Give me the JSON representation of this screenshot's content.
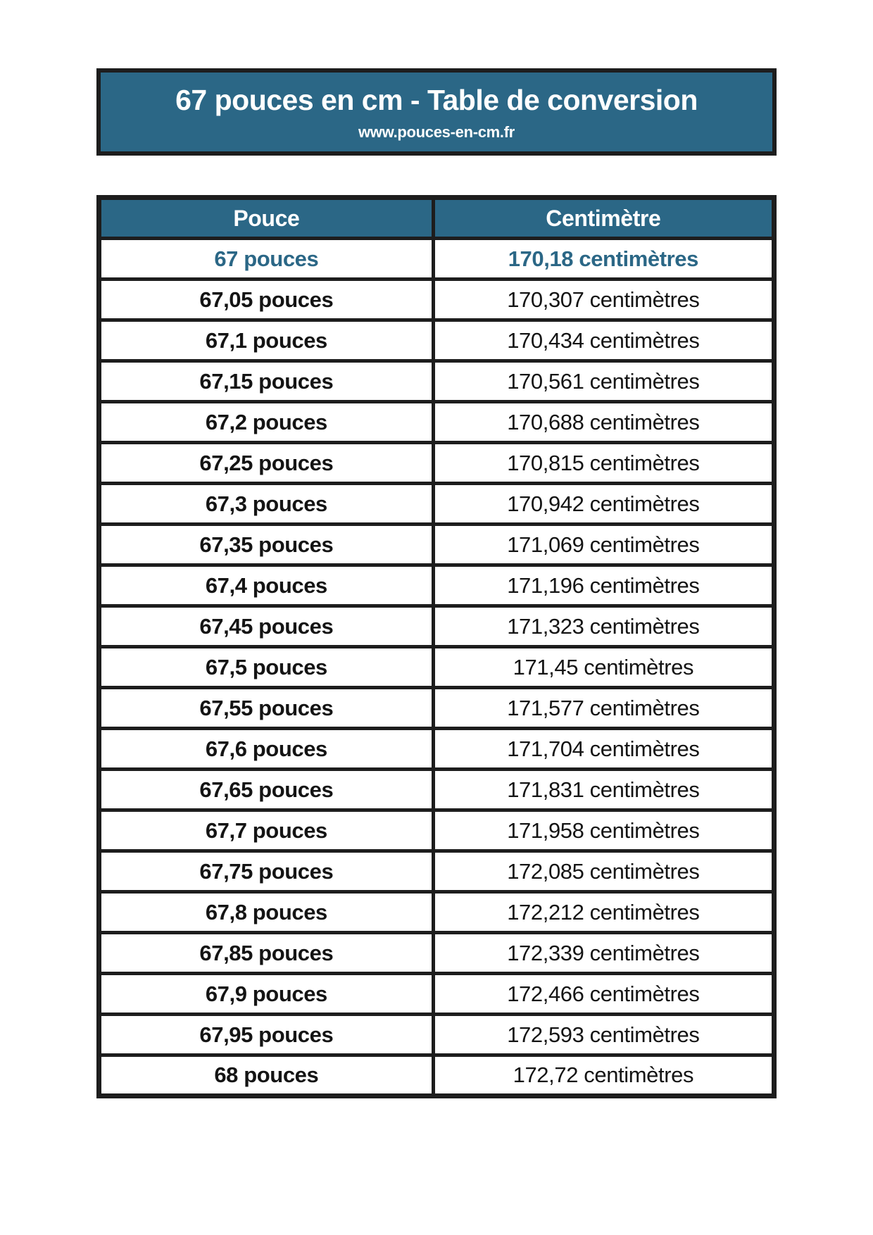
{
  "page": {
    "background_color": "#ffffff"
  },
  "header": {
    "title": "67 pouces en cm - Table de conversion",
    "subtitle": "www.pouces-en-cm.fr",
    "background_color": "#2b6786",
    "border_color": "#1d1d1d",
    "text_color": "#ffffff"
  },
  "table": {
    "headers": [
      "Pouce",
      "Centimètre"
    ],
    "header_background_color": "#2b6786",
    "header_text_color": "#ffffff",
    "border_color": "#1d1d1d",
    "highlight_text_color": "#2b6786",
    "body_text_color": "#141414",
    "rows": [
      {
        "pouce": "67 pouces",
        "cm": "170,18 centimètres",
        "highlight": true
      },
      {
        "pouce": "67,05 pouces",
        "cm": "170,307 centimètres",
        "highlight": false
      },
      {
        "pouce": "67,1 pouces",
        "cm": "170,434 centimètres",
        "highlight": false
      },
      {
        "pouce": "67,15 pouces",
        "cm": "170,561 centimètres",
        "highlight": false
      },
      {
        "pouce": "67,2 pouces",
        "cm": "170,688 centimètres",
        "highlight": false
      },
      {
        "pouce": "67,25 pouces",
        "cm": "170,815 centimètres",
        "highlight": false
      },
      {
        "pouce": "67,3 pouces",
        "cm": "170,942 centimètres",
        "highlight": false
      },
      {
        "pouce": "67,35 pouces",
        "cm": "171,069 centimètres",
        "highlight": false
      },
      {
        "pouce": "67,4 pouces",
        "cm": "171,196 centimètres",
        "highlight": false
      },
      {
        "pouce": "67,45 pouces",
        "cm": "171,323 centimètres",
        "highlight": false
      },
      {
        "pouce": "67,5 pouces",
        "cm": "171,45 centimètres",
        "highlight": false
      },
      {
        "pouce": "67,55 pouces",
        "cm": "171,577 centimètres",
        "highlight": false
      },
      {
        "pouce": "67,6 pouces",
        "cm": "171,704 centimètres",
        "highlight": false
      },
      {
        "pouce": "67,65 pouces",
        "cm": "171,831 centimètres",
        "highlight": false
      },
      {
        "pouce": "67,7 pouces",
        "cm": "171,958 centimètres",
        "highlight": false
      },
      {
        "pouce": "67,75 pouces",
        "cm": "172,085 centimètres",
        "highlight": false
      },
      {
        "pouce": "67,8 pouces",
        "cm": "172,212 centimètres",
        "highlight": false
      },
      {
        "pouce": "67,85 pouces",
        "cm": "172,339 centimètres",
        "highlight": false
      },
      {
        "pouce": "67,9 pouces",
        "cm": "172,466 centimètres",
        "highlight": false
      },
      {
        "pouce": "67,95 pouces",
        "cm": "172,593 centimètres",
        "highlight": false
      },
      {
        "pouce": "68 pouces",
        "cm": "172,72 centimètres",
        "highlight": false
      }
    ]
  }
}
